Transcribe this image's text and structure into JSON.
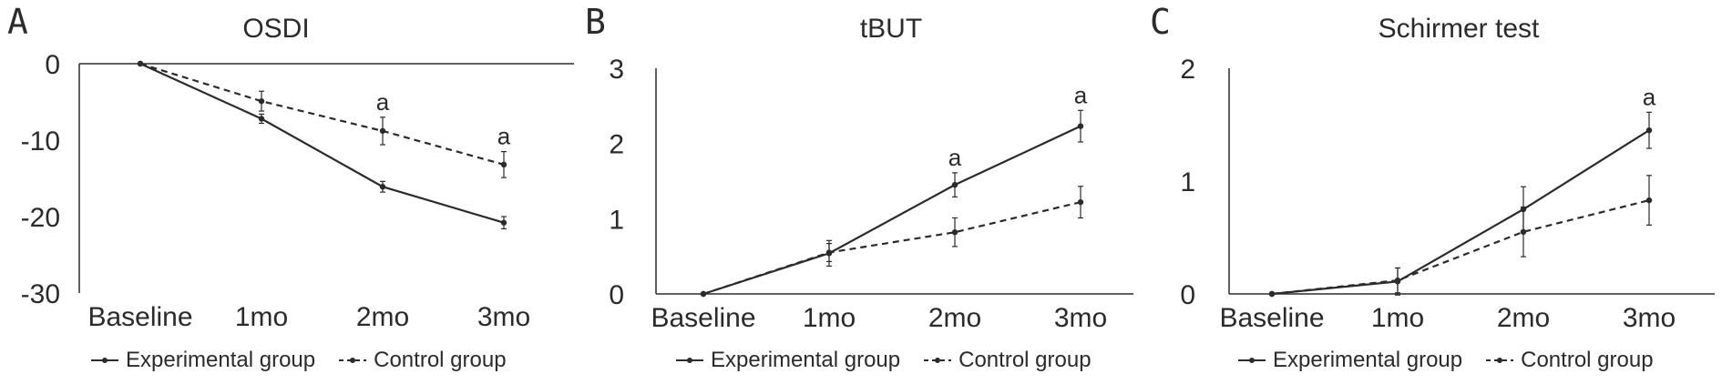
{
  "chart_data": [
    {
      "type": "line",
      "panel_letter": "A",
      "title": "OSDI",
      "categories": [
        "Baseline",
        "1mo",
        "2mo",
        "3mo"
      ],
      "ylim": [
        -30,
        0
      ],
      "yticks": [
        0,
        -10,
        -20,
        -30
      ],
      "x_axis_position": "top (at y = 0)",
      "series": [
        {
          "name": "Experimental group",
          "style": "solid",
          "values": [
            0,
            -7.2,
            -16.1,
            -20.8
          ],
          "errors": [
            0,
            0.6,
            0.7,
            0.8
          ]
        },
        {
          "name": "Control group",
          "style": "dashed",
          "values": [
            0,
            -4.9,
            -8.8,
            -13.2
          ],
          "errors": [
            0,
            1.3,
            1.8,
            1.7
          ]
        }
      ],
      "annotations": [
        {
          "category": "2mo",
          "text": "a"
        },
        {
          "category": "3mo",
          "text": "a"
        }
      ],
      "grid": false,
      "legend_position": "bottom"
    },
    {
      "type": "line",
      "panel_letter": "B",
      "title": "tBUT",
      "categories": [
        "Baseline",
        "1mo",
        "2mo",
        "3mo"
      ],
      "ylim": [
        0,
        3
      ],
      "yticks": [
        0,
        1,
        2,
        3
      ],
      "series": [
        {
          "name": "Experimental group",
          "style": "solid",
          "values": [
            0,
            0.54,
            1.45,
            2.23
          ],
          "errors": [
            0,
            0.17,
            0.16,
            0.21
          ]
        },
        {
          "name": "Control group",
          "style": "dashed",
          "values": [
            0,
            0.55,
            0.82,
            1.22
          ],
          "errors": [
            0,
            0.12,
            0.19,
            0.21
          ]
        }
      ],
      "annotations": [
        {
          "category": "2mo",
          "text": "a"
        },
        {
          "category": "3mo",
          "text": "a"
        }
      ],
      "grid": false,
      "legend_position": "bottom"
    },
    {
      "type": "line",
      "panel_letter": "C",
      "title": "Schirmer test",
      "categories": [
        "Baseline",
        "1mo",
        "2mo",
        "3mo"
      ],
      "ylim": [
        0,
        2
      ],
      "yticks": [
        0,
        1,
        2
      ],
      "series": [
        {
          "name": "Experimental group",
          "style": "solid",
          "values": [
            0,
            0.11,
            0.75,
            1.45
          ],
          "errors": [
            0,
            0.12,
            0.2,
            0.16
          ]
        },
        {
          "name": "Control group",
          "style": "dashed",
          "values": [
            0,
            0.12,
            0.55,
            0.83
          ],
          "errors": [
            0,
            0.11,
            0.22,
            0.22
          ]
        }
      ],
      "annotations": [
        {
          "category": "3mo",
          "text": "a"
        }
      ],
      "grid": false,
      "legend_position": "bottom"
    }
  ]
}
